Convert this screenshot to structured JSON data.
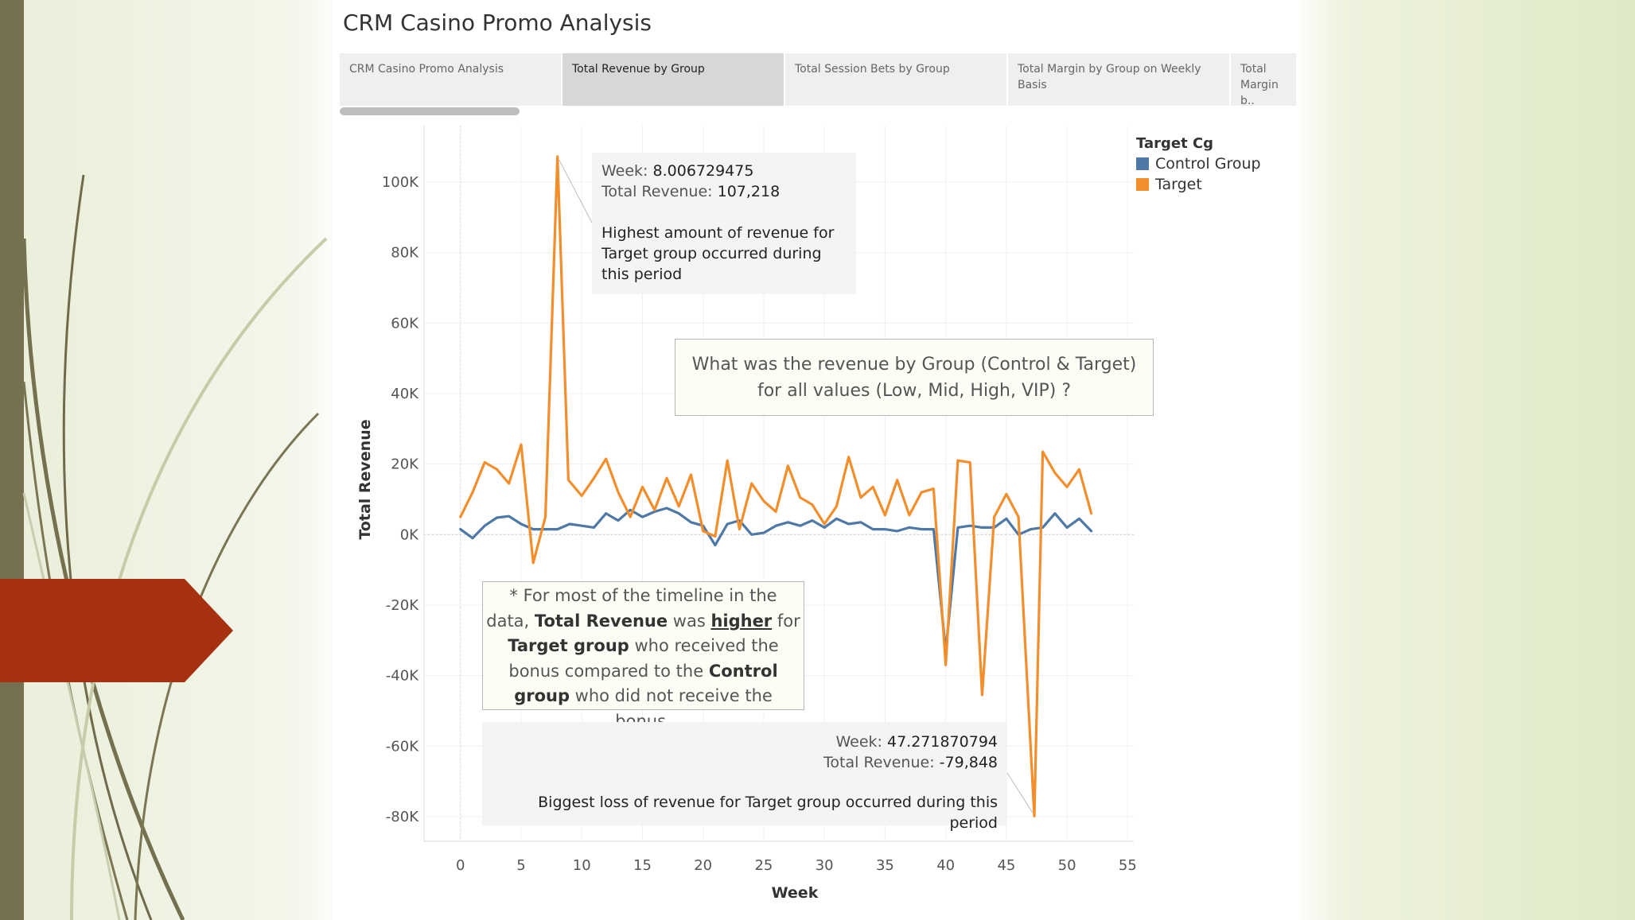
{
  "dashboard": {
    "title": "CRM Casino Promo Analysis",
    "tabs": [
      {
        "label": "CRM Casino Promo Analysis",
        "active": false
      },
      {
        "label": "Total Revenue by Group",
        "active": true
      },
      {
        "label": "Total Session Bets by Group",
        "active": false
      },
      {
        "label": "Total Margin by Group on Weekly Basis",
        "active": false
      },
      {
        "label": "Total Margin b..",
        "active": false
      }
    ]
  },
  "legend": {
    "title": "Target Cg",
    "items": [
      {
        "label": "Control Group",
        "color": "#4e79a7"
      },
      {
        "label": "Target",
        "color": "#f28e2b"
      }
    ]
  },
  "tooltip_peak": {
    "week_key": "Week:",
    "week_value": "8.006729475",
    "revenue_key": "Total Revenue:",
    "revenue_value": "107,218",
    "note": "Highest amount of revenue for Target group occurred during this period"
  },
  "tooltip_loss": {
    "week_key": "Week:",
    "week_value": "47.271870794",
    "revenue_key": "Total Revenue:",
    "revenue_value": "-79,848",
    "note": "Biggest loss of revenue for Target group occurred during this period"
  },
  "question_box": "What was the revenue by Group (Control & Target)  for all values (Low, Mid, High, VIP) ?",
  "insight_box": {
    "p1": "* For most of the timeline in the data,",
    "b1": "Total Revenue",
    "p2": " was ",
    "u1": "higher",
    "p3": " for ",
    "b2": "Target group",
    "p4": " who received the bonus compared to the ",
    "b3": "Control group",
    "p5": " who did not receive the bonus."
  },
  "chart_data": {
    "type": "line",
    "xlabel": "Week",
    "ylabel": "Total Revenue",
    "xlim": [
      -3,
      55.5
    ],
    "ylim": [
      -87000,
      116000
    ],
    "x_ticks": [
      0,
      5,
      10,
      15,
      20,
      25,
      30,
      35,
      40,
      45,
      50,
      55
    ],
    "y_ticks": [
      100000,
      80000,
      60000,
      40000,
      20000,
      0,
      -20000,
      -40000,
      -60000,
      -80000
    ],
    "y_tick_labels": [
      "100K",
      "80K",
      "60K",
      "40K",
      "20K",
      "0K",
      "-20K",
      "-40K",
      "-60K",
      "-80K"
    ],
    "grid": true,
    "legend_position": "top-right",
    "series": [
      {
        "name": "Control Group",
        "color": "#4e79a7",
        "x": [
          0,
          1,
          2,
          3,
          4,
          5,
          6,
          7,
          8,
          9,
          10,
          11,
          12,
          13,
          14,
          15,
          16,
          17,
          18,
          19,
          20,
          21,
          22,
          23,
          24,
          25,
          26,
          27,
          28,
          29,
          30,
          31,
          32,
          33,
          34,
          35,
          36,
          37,
          38,
          39,
          40,
          41,
          42,
          43,
          44,
          45,
          46,
          47,
          48,
          49,
          50,
          51,
          52
        ],
        "values": [
          1500,
          -1000,
          2500,
          4800,
          5200,
          3000,
          1500,
          1500,
          1500,
          3000,
          2500,
          2000,
          6000,
          4000,
          7000,
          5000,
          6500,
          7500,
          6000,
          3500,
          2500,
          -3000,
          3000,
          4000,
          0,
          500,
          2500,
          3500,
          2500,
          4000,
          2000,
          4500,
          3000,
          3500,
          1500,
          1500,
          1000,
          2000,
          1500,
          1500,
          -33000,
          2000,
          2500,
          2000,
          2000,
          4500,
          0,
          1500,
          2000,
          6000,
          2000,
          4500,
          1000
        ]
      },
      {
        "name": "Target",
        "color": "#f28e2b",
        "x": [
          0,
          1,
          2,
          3,
          4,
          5,
          6,
          7,
          8,
          8.9,
          10,
          11,
          12,
          13,
          14,
          15,
          16,
          17,
          18,
          19,
          20,
          21,
          22,
          23,
          24,
          25,
          26,
          27,
          28,
          29,
          30,
          31,
          32,
          33,
          34,
          35,
          36,
          37,
          38,
          39,
          40,
          41,
          42,
          43,
          44,
          45,
          46,
          47.3,
          48,
          49,
          50,
          51,
          52
        ],
        "values": [
          5000,
          12000,
          20500,
          18500,
          14500,
          25500,
          -8000,
          5000,
          107218,
          15500,
          11000,
          16000,
          21500,
          12000,
          5000,
          13500,
          7000,
          16000,
          8000,
          17000,
          1000,
          -500,
          21000,
          1500,
          14500,
          9500,
          6500,
          19500,
          10500,
          8500,
          3000,
          8000,
          22000,
          10500,
          13500,
          5500,
          15500,
          5500,
          12000,
          13000,
          -37000,
          21000,
          20500,
          -45500,
          5000,
          11500,
          5000,
          -79848,
          23500,
          17500,
          13500,
          18500,
          6000
        ]
      }
    ]
  }
}
